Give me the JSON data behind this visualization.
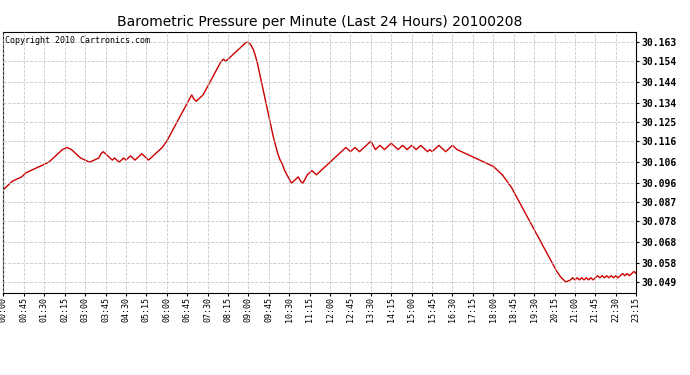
{
  "title": "Barometric Pressure per Minute (Last 24 Hours) 20100208",
  "copyright": "Copyright 2010 Cartronics.com",
  "line_color": "#cc0000",
  "background_color": "#ffffff",
  "plot_bg_color": "#ffffff",
  "grid_color": "#bbbbbb",
  "yticks": [
    30.049,
    30.058,
    30.068,
    30.078,
    30.087,
    30.096,
    30.106,
    30.116,
    30.125,
    30.134,
    30.144,
    30.154,
    30.163
  ],
  "ylim": [
    30.044,
    30.168
  ],
  "xtick_labels": [
    "00:00",
    "00:45",
    "01:30",
    "02:15",
    "03:00",
    "03:45",
    "04:30",
    "05:15",
    "06:00",
    "06:45",
    "07:30",
    "08:15",
    "09:00",
    "09:45",
    "10:30",
    "11:15",
    "12:00",
    "12:45",
    "13:30",
    "14:15",
    "15:00",
    "15:45",
    "16:30",
    "17:15",
    "18:00",
    "18:45",
    "19:30",
    "20:15",
    "21:00",
    "21:45",
    "22:30",
    "23:15"
  ],
  "x_values": [
    0,
    45,
    90,
    135,
    180,
    225,
    270,
    315,
    360,
    405,
    450,
    495,
    540,
    585,
    630,
    675,
    720,
    765,
    810,
    855,
    900,
    945,
    990,
    1035,
    1080,
    1125,
    1170,
    1215,
    1260,
    1305,
    1350,
    1395
  ],
  "pressure_data": [
    [
      0,
      30.093
    ],
    [
      10,
      30.095
    ],
    [
      20,
      30.097
    ],
    [
      30,
      30.098
    ],
    [
      40,
      30.099
    ],
    [
      45,
      30.1
    ],
    [
      50,
      30.101
    ],
    [
      60,
      30.102
    ],
    [
      70,
      30.103
    ],
    [
      80,
      30.104
    ],
    [
      90,
      30.105
    ],
    [
      100,
      30.106
    ],
    [
      110,
      30.108
    ],
    [
      120,
      30.11
    ],
    [
      130,
      30.112
    ],
    [
      140,
      30.113
    ],
    [
      150,
      30.112
    ],
    [
      160,
      30.11
    ],
    [
      170,
      30.108
    ],
    [
      180,
      30.107
    ],
    [
      190,
      30.106
    ],
    [
      200,
      30.107
    ],
    [
      210,
      30.108
    ],
    [
      215,
      30.11
    ],
    [
      220,
      30.111
    ],
    [
      225,
      30.11
    ],
    [
      230,
      30.109
    ],
    [
      235,
      30.108
    ],
    [
      240,
      30.107
    ],
    [
      245,
      30.108
    ],
    [
      250,
      30.107
    ],
    [
      255,
      30.106
    ],
    [
      260,
      30.107
    ],
    [
      265,
      30.108
    ],
    [
      270,
      30.107
    ],
    [
      275,
      30.108
    ],
    [
      280,
      30.109
    ],
    [
      285,
      30.108
    ],
    [
      290,
      30.107
    ],
    [
      295,
      30.108
    ],
    [
      300,
      30.109
    ],
    [
      305,
      30.11
    ],
    [
      310,
      30.109
    ],
    [
      315,
      30.108
    ],
    [
      320,
      30.107
    ],
    [
      325,
      30.108
    ],
    [
      330,
      30.109
    ],
    [
      335,
      30.11
    ],
    [
      340,
      30.111
    ],
    [
      345,
      30.112
    ],
    [
      350,
      30.113
    ],
    [
      360,
      30.116
    ],
    [
      370,
      30.12
    ],
    [
      380,
      30.124
    ],
    [
      390,
      30.128
    ],
    [
      400,
      30.132
    ],
    [
      410,
      30.136
    ],
    [
      415,
      30.138
    ],
    [
      420,
      30.136
    ],
    [
      425,
      30.135
    ],
    [
      430,
      30.136
    ],
    [
      435,
      30.137
    ],
    [
      440,
      30.138
    ],
    [
      445,
      30.14
    ],
    [
      450,
      30.142
    ],
    [
      455,
      30.144
    ],
    [
      460,
      30.146
    ],
    [
      465,
      30.148
    ],
    [
      470,
      30.15
    ],
    [
      475,
      30.152
    ],
    [
      480,
      30.154
    ],
    [
      485,
      30.155
    ],
    [
      490,
      30.154
    ],
    [
      495,
      30.155
    ],
    [
      500,
      30.156
    ],
    [
      505,
      30.157
    ],
    [
      510,
      30.158
    ],
    [
      515,
      30.159
    ],
    [
      520,
      30.16
    ],
    [
      525,
      30.161
    ],
    [
      530,
      30.162
    ],
    [
      535,
      30.163
    ],
    [
      540,
      30.163
    ],
    [
      545,
      30.162
    ],
    [
      550,
      30.16
    ],
    [
      555,
      30.157
    ],
    [
      560,
      30.153
    ],
    [
      565,
      30.148
    ],
    [
      570,
      30.143
    ],
    [
      575,
      30.138
    ],
    [
      580,
      30.133
    ],
    [
      585,
      30.128
    ],
    [
      590,
      30.123
    ],
    [
      595,
      30.118
    ],
    [
      600,
      30.114
    ],
    [
      605,
      30.11
    ],
    [
      610,
      30.107
    ],
    [
      615,
      30.105
    ],
    [
      620,
      30.102
    ],
    [
      625,
      30.1
    ],
    [
      630,
      30.098
    ],
    [
      635,
      30.096
    ],
    [
      640,
      30.097
    ],
    [
      645,
      30.098
    ],
    [
      650,
      30.099
    ],
    [
      655,
      30.097
    ],
    [
      660,
      30.096
    ],
    [
      665,
      30.098
    ],
    [
      670,
      30.1
    ],
    [
      675,
      30.101
    ],
    [
      680,
      30.102
    ],
    [
      685,
      30.101
    ],
    [
      690,
      30.1
    ],
    [
      695,
      30.101
    ],
    [
      700,
      30.102
    ],
    [
      705,
      30.103
    ],
    [
      710,
      30.104
    ],
    [
      715,
      30.105
    ],
    [
      720,
      30.106
    ],
    [
      725,
      30.107
    ],
    [
      730,
      30.108
    ],
    [
      735,
      30.109
    ],
    [
      740,
      30.11
    ],
    [
      745,
      30.111
    ],
    [
      750,
      30.112
    ],
    [
      755,
      30.113
    ],
    [
      760,
      30.112
    ],
    [
      765,
      30.111
    ],
    [
      770,
      30.112
    ],
    [
      775,
      30.113
    ],
    [
      780,
      30.112
    ],
    [
      785,
      30.111
    ],
    [
      790,
      30.112
    ],
    [
      795,
      30.113
    ],
    [
      800,
      30.114
    ],
    [
      805,
      30.115
    ],
    [
      810,
      30.116
    ],
    [
      815,
      30.114
    ],
    [
      820,
      30.112
    ],
    [
      825,
      30.113
    ],
    [
      830,
      30.114
    ],
    [
      835,
      30.113
    ],
    [
      840,
      30.112
    ],
    [
      845,
      30.113
    ],
    [
      850,
      30.114
    ],
    [
      855,
      30.115
    ],
    [
      860,
      30.114
    ],
    [
      865,
      30.113
    ],
    [
      870,
      30.112
    ],
    [
      875,
      30.113
    ],
    [
      880,
      30.114
    ],
    [
      885,
      30.113
    ],
    [
      890,
      30.112
    ],
    [
      895,
      30.113
    ],
    [
      900,
      30.114
    ],
    [
      905,
      30.113
    ],
    [
      910,
      30.112
    ],
    [
      915,
      30.113
    ],
    [
      920,
      30.114
    ],
    [
      925,
      30.113
    ],
    [
      930,
      30.112
    ],
    [
      935,
      30.111
    ],
    [
      940,
      30.112
    ],
    [
      945,
      30.111
    ],
    [
      950,
      30.112
    ],
    [
      955,
      30.113
    ],
    [
      960,
      30.114
    ],
    [
      965,
      30.113
    ],
    [
      970,
      30.112
    ],
    [
      975,
      30.111
    ],
    [
      980,
      30.112
    ],
    [
      985,
      30.113
    ],
    [
      990,
      30.114
    ],
    [
      995,
      30.113
    ],
    [
      1000,
      30.112
    ],
    [
      1010,
      30.111
    ],
    [
      1020,
      30.11
    ],
    [
      1030,
      30.109
    ],
    [
      1040,
      30.108
    ],
    [
      1050,
      30.107
    ],
    [
      1060,
      30.106
    ],
    [
      1070,
      30.105
    ],
    [
      1080,
      30.104
    ],
    [
      1090,
      30.102
    ],
    [
      1100,
      30.1
    ],
    [
      1110,
      30.097
    ],
    [
      1120,
      30.094
    ],
    [
      1130,
      30.09
    ],
    [
      1140,
      30.086
    ],
    [
      1150,
      30.082
    ],
    [
      1160,
      30.078
    ],
    [
      1170,
      30.074
    ],
    [
      1180,
      30.07
    ],
    [
      1190,
      30.066
    ],
    [
      1200,
      30.062
    ],
    [
      1210,
      30.058
    ],
    [
      1220,
      30.054
    ],
    [
      1230,
      30.051
    ],
    [
      1240,
      30.049
    ],
    [
      1250,
      30.05
    ],
    [
      1255,
      30.051
    ],
    [
      1260,
      30.05
    ],
    [
      1265,
      30.051
    ],
    [
      1270,
      30.05
    ],
    [
      1275,
      30.051
    ],
    [
      1280,
      30.05
    ],
    [
      1285,
      30.051
    ],
    [
      1290,
      30.05
    ],
    [
      1295,
      30.051
    ],
    [
      1300,
      30.05
    ],
    [
      1305,
      30.051
    ],
    [
      1310,
      30.052
    ],
    [
      1315,
      30.051
    ],
    [
      1320,
      30.052
    ],
    [
      1325,
      30.051
    ],
    [
      1330,
      30.052
    ],
    [
      1335,
      30.051
    ],
    [
      1340,
      30.052
    ],
    [
      1345,
      30.051
    ],
    [
      1350,
      30.052
    ],
    [
      1355,
      30.051
    ],
    [
      1360,
      30.052
    ],
    [
      1365,
      30.053
    ],
    [
      1370,
      30.052
    ],
    [
      1375,
      30.053
    ],
    [
      1380,
      30.052
    ],
    [
      1385,
      30.053
    ],
    [
      1390,
      30.054
    ],
    [
      1395,
      30.053
    ]
  ]
}
